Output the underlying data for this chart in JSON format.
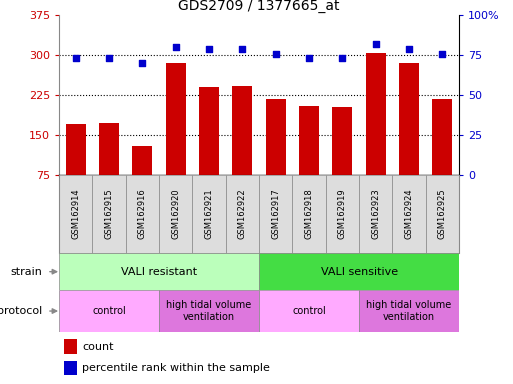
{
  "title": "GDS2709 / 1377665_at",
  "samples": [
    "GSM162914",
    "GSM162915",
    "GSM162916",
    "GSM162920",
    "GSM162921",
    "GSM162922",
    "GSM162917",
    "GSM162918",
    "GSM162919",
    "GSM162923",
    "GSM162924",
    "GSM162925"
  ],
  "counts": [
    170,
    172,
    130,
    285,
    240,
    242,
    218,
    205,
    202,
    305,
    285,
    218
  ],
  "percentiles": [
    73,
    73,
    70,
    80,
    79,
    79,
    76,
    73,
    73,
    82,
    79,
    76
  ],
  "ylim_left": [
    75,
    375
  ],
  "ylim_right": [
    0,
    100
  ],
  "yticks_left": [
    75,
    150,
    225,
    300,
    375
  ],
  "yticks_right": [
    0,
    25,
    50,
    75,
    100
  ],
  "bar_color": "#cc0000",
  "dot_color": "#0000cc",
  "strain_groups": [
    {
      "label": "VALI resistant",
      "start": 0,
      "end": 6,
      "color": "#bbffbb"
    },
    {
      "label": "VALI sensitive",
      "start": 6,
      "end": 12,
      "color": "#44dd44"
    }
  ],
  "protocol_groups": [
    {
      "label": "control",
      "start": 0,
      "end": 3,
      "color": "#ffaaff"
    },
    {
      "label": "high tidal volume\nventilation",
      "start": 3,
      "end": 6,
      "color": "#dd77dd"
    },
    {
      "label": "control",
      "start": 6,
      "end": 9,
      "color": "#ffaaff"
    },
    {
      "label": "high tidal volume\nventilation",
      "start": 9,
      "end": 12,
      "color": "#dd77dd"
    }
  ],
  "legend_count_label": "count",
  "legend_pct_label": "percentile rank within the sample",
  "strain_label": "strain",
  "protocol_label": "protocol",
  "grid_color": "#000000",
  "tick_color_left": "#cc0000",
  "tick_color_right": "#0000cc",
  "bar_width": 0.6,
  "sample_bg_color": "#dddddd",
  "sample_border_color": "#888888"
}
